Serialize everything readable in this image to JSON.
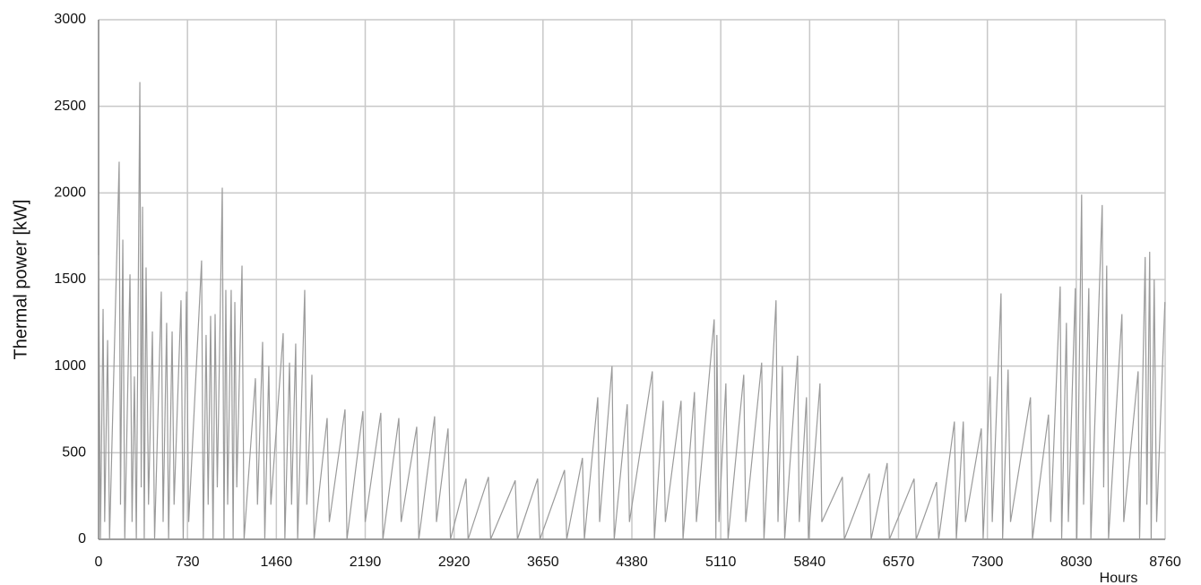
{
  "chart_data": {
    "type": "line",
    "x_label": "Hours",
    "y_label": "Thermal power [kW]",
    "x": [
      0,
      15,
      37,
      50,
      74,
      90,
      169,
      180,
      199,
      215,
      258,
      275,
      294,
      310,
      339,
      350,
      361,
      375,
      390,
      410,
      442,
      460,
      515,
      530,
      559,
      575,
      604,
      620,
      677,
      695,
      721,
      740,
      846,
      860,
      883,
      900,
      920,
      940,
      957,
      975,
      1016,
      1030,
      1045,
      1060,
      1089,
      1105,
      1119,
      1135,
      1178,
      1195,
      1288,
      1305,
      1347,
      1365,
      1398,
      1415,
      1516,
      1530,
      1568,
      1585,
      1619,
      1635,
      1693,
      1710,
      1752,
      1770,
      1877,
      1895,
      2024,
      2040,
      2171,
      2190,
      2318,
      2335,
      2466,
      2485,
      2613,
      2630,
      2760,
      2775,
      2870,
      2890,
      3018,
      3035,
      3202,
      3220,
      3422,
      3440,
      3606,
      3625,
      3827,
      3845,
      3974,
      3990,
      4100,
      4115,
      4217,
      4235,
      4342,
      4360,
      4548,
      4565,
      4637,
      4655,
      4784,
      4800,
      4894,
      4910,
      5056,
      5070,
      5078,
      5095,
      5152,
      5170,
      5299,
      5315,
      5446,
      5465,
      5564,
      5580,
      5616,
      5635,
      5741,
      5755,
      5814,
      5830,
      5925,
      5940,
      6109,
      6125,
      6330,
      6345,
      6477,
      6495,
      6698,
      6715,
      6882,
      6900,
      7029,
      7045,
      7102,
      7120,
      7250,
      7265,
      7323,
      7340,
      7412,
      7425,
      7470,
      7490,
      7654,
      7670,
      7802,
      7820,
      7898,
      7910,
      7949,
      7965,
      8022,
      8035,
      8074,
      8090,
      8133,
      8150,
      8243,
      8255,
      8280,
      8295,
      8405,
      8420,
      8538,
      8550,
      8596,
      8610,
      8633,
      8645,
      8670,
      8690,
      8758
    ],
    "series": [
      {
        "color": "#9a9a9a",
        "values": [
          1640,
          0,
          1330,
          100,
          1150,
          0,
          2180,
          200,
          1730,
          0,
          1530,
          100,
          940,
          0,
          2640,
          300,
          1920,
          0,
          1570,
          200,
          1200,
          0,
          1430,
          100,
          1250,
          0,
          1200,
          200,
          1380,
          0,
          1430,
          100,
          1610,
          0,
          1180,
          200,
          1290,
          0,
          1300,
          300,
          2030,
          0,
          1440,
          200,
          1440,
          0,
          1370,
          300,
          1580,
          0,
          930,
          200,
          1140,
          0,
          1000,
          200,
          1190,
          0,
          1020,
          200,
          1130,
          0,
          1440,
          200,
          950,
          0,
          700,
          100,
          750,
          0,
          740,
          100,
          730,
          0,
          700,
          100,
          650,
          0,
          710,
          100,
          640,
          0,
          350,
          0,
          360,
          0,
          340,
          0,
          350,
          0,
          400,
          0,
          470,
          0,
          820,
          100,
          1000,
          0,
          780,
          100,
          970,
          0,
          800,
          100,
          800,
          0,
          850,
          100,
          1270,
          0,
          1180,
          100,
          900,
          0,
          950,
          100,
          1020,
          0,
          1380,
          100,
          1000,
          0,
          1060,
          100,
          820,
          0,
          900,
          100,
          360,
          0,
          380,
          0,
          440,
          0,
          350,
          0,
          330,
          0,
          680,
          0,
          680,
          100,
          640,
          0,
          940,
          100,
          1420,
          0,
          980,
          100,
          820,
          0,
          720,
          100,
          1460,
          0,
          1250,
          100,
          1450,
          0,
          1990,
          200,
          1450,
          0,
          1930,
          300,
          1580,
          0,
          1300,
          100,
          970,
          0,
          1630,
          200,
          1660,
          0,
          1500,
          100,
          1370
        ]
      }
    ],
    "xlim": [
      0,
      8760
    ],
    "xticks": [
      0,
      730,
      1460,
      2190,
      2920,
      3650,
      4380,
      5110,
      5840,
      6570,
      7300,
      8030,
      8760
    ],
    "ylim": [
      0,
      3000
    ],
    "yticks": [
      0,
      500,
      1000,
      1500,
      2000,
      2500,
      3000
    ],
    "grid": true
  }
}
